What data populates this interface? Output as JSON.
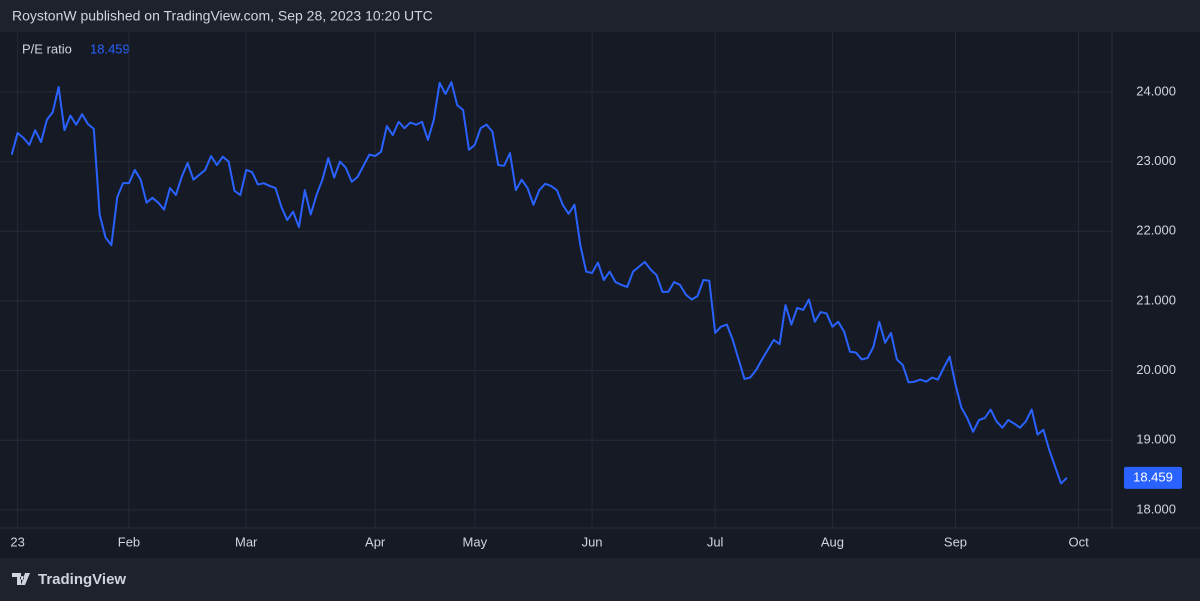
{
  "header": "RoystonW published on TradingView.com, Sep 28, 2023 10:20 UTC",
  "footer": "TradingView",
  "chart_data": {
    "type": "line",
    "series": [
      {
        "name": "P/E ratio",
        "color": "#2962ff",
        "values": [
          23.1,
          23.41,
          23.34,
          23.24,
          23.45,
          23.28,
          23.6,
          23.71,
          24.07,
          23.45,
          23.66,
          23.53,
          23.68,
          23.54,
          23.47,
          22.24,
          21.91,
          21.8,
          22.49,
          22.69,
          22.69,
          22.88,
          22.74,
          22.41,
          22.48,
          22.41,
          22.31,
          22.62,
          22.52,
          22.78,
          22.98,
          22.74,
          22.81,
          22.88,
          23.08,
          22.95,
          23.07,
          23.0,
          22.58,
          22.52,
          22.88,
          22.85,
          22.67,
          22.69,
          22.65,
          22.62,
          22.35,
          22.16,
          22.28,
          22.06,
          22.59,
          22.24,
          22.52,
          22.74,
          23.05,
          22.77,
          23.0,
          22.91,
          22.71,
          22.78,
          22.94,
          23.1,
          23.08,
          23.14,
          23.51,
          23.38,
          23.57,
          23.48,
          23.56,
          23.53,
          23.57,
          23.31,
          23.6,
          24.13,
          23.97,
          24.14,
          23.81,
          23.74,
          23.17,
          23.24,
          23.48,
          23.53,
          23.43,
          22.95,
          22.94,
          23.12,
          22.59,
          22.74,
          22.62,
          22.38,
          22.59,
          22.68,
          22.65,
          22.59,
          22.38,
          22.25,
          22.38,
          21.8,
          21.42,
          21.4,
          21.55,
          21.3,
          21.42,
          21.27,
          21.23,
          21.2,
          21.42,
          21.49,
          21.56,
          21.45,
          21.37,
          21.13,
          21.13,
          21.27,
          21.23,
          21.09,
          21.02,
          21.07,
          21.3,
          21.29,
          20.54,
          20.63,
          20.66,
          20.44,
          20.16,
          19.88,
          19.9,
          20.01,
          20.16,
          20.3,
          20.44,
          20.38,
          20.94,
          20.66,
          20.9,
          20.87,
          21.02,
          20.7,
          20.84,
          20.82,
          20.63,
          20.7,
          20.56,
          20.27,
          20.26,
          20.16,
          20.18,
          20.34,
          20.7,
          20.4,
          20.54,
          20.16,
          20.08,
          19.83,
          19.84,
          19.87,
          19.84,
          19.9,
          19.87,
          20.04,
          20.2,
          19.8,
          19.47,
          19.32,
          19.12,
          19.29,
          19.32,
          19.44,
          19.27,
          19.18,
          19.29,
          19.24,
          19.18,
          19.27,
          19.44,
          19.08,
          19.15,
          18.86,
          18.62,
          18.38,
          18.459
        ]
      }
    ],
    "x": [
      0,
      1,
      2,
      3,
      4,
      5,
      6,
      7,
      8,
      9,
      10,
      11,
      12,
      13,
      14,
      15,
      16,
      17,
      18,
      19,
      20,
      21,
      22,
      23,
      24,
      25,
      26,
      27,
      28,
      29,
      30,
      31,
      32,
      33,
      34,
      35,
      36,
      37,
      38,
      39,
      40,
      41,
      42,
      43,
      44,
      45,
      46,
      47,
      48,
      49,
      50,
      51,
      52,
      53,
      54,
      55,
      56,
      57,
      58,
      59,
      60,
      61,
      62,
      63,
      64,
      65,
      66,
      67,
      68,
      69,
      70,
      71,
      72,
      73,
      74,
      75,
      76,
      77,
      78,
      79,
      80,
      81,
      82,
      83,
      84,
      85,
      86,
      87,
      88,
      89,
      90,
      91,
      92,
      93,
      94,
      95,
      96,
      97,
      98,
      99,
      100,
      101,
      102,
      103,
      104,
      105,
      106,
      107,
      108,
      109,
      110,
      111,
      112,
      113,
      114,
      115,
      116,
      117,
      118,
      119,
      120,
      121,
      122,
      123,
      124,
      125,
      126,
      127,
      128,
      129,
      130,
      131,
      132,
      133,
      134,
      135,
      136,
      137,
      138,
      139,
      140,
      141,
      142,
      143,
      144,
      145,
      146,
      147,
      148,
      149,
      150,
      151,
      152,
      153,
      154,
      155,
      156,
      157,
      158,
      159,
      160,
      161,
      162,
      163,
      164,
      165,
      166,
      167,
      168,
      169,
      170,
      171,
      172,
      173,
      174,
      175,
      176,
      177,
      178,
      179,
      180
    ],
    "xlim": [
      -2,
      187.7
    ],
    "xticks": [
      {
        "value": 1,
        "label": "23"
      },
      {
        "value": 20,
        "label": "Feb"
      },
      {
        "value": 40,
        "label": "Mar"
      },
      {
        "value": 62,
        "label": "Apr"
      },
      {
        "value": 79,
        "label": "May"
      },
      {
        "value": 99,
        "label": "Jun"
      },
      {
        "value": 120,
        "label": "Jul"
      },
      {
        "value": 140,
        "label": "Aug"
      },
      {
        "value": 161,
        "label": "Sep"
      },
      {
        "value": 182,
        "label": "Oct"
      }
    ],
    "ylim": [
      17.74,
      24.86
    ],
    "yticks": [
      {
        "value": 18,
        "label": "18.000"
      },
      {
        "value": 19,
        "label": "19.000"
      },
      {
        "value": 20,
        "label": "20.000"
      },
      {
        "value": 21,
        "label": "21.000"
      },
      {
        "value": 22,
        "label": "22.000"
      },
      {
        "value": 23,
        "label": "23.000"
      },
      {
        "value": 24,
        "label": "24.000"
      }
    ],
    "grid": true
  }
}
